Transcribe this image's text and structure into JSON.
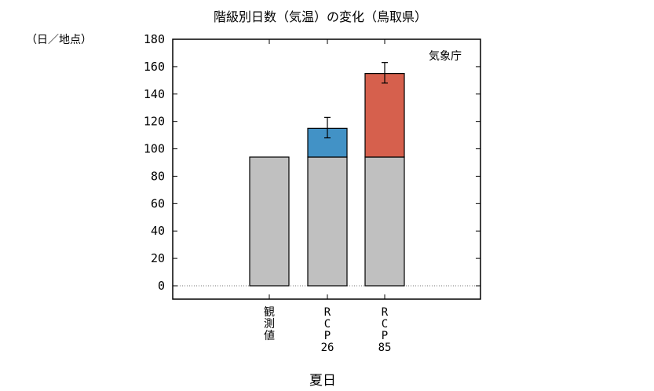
{
  "chart_data": {
    "type": "bar",
    "title": "階級別日数（気温）の変化（鳥取県）",
    "unit_label": "（日／地点）",
    "source_label": "気象庁",
    "xlabel": "夏日",
    "ylim": [
      0,
      180
    ],
    "yticks": [
      "0",
      "20",
      "40",
      "60",
      "80",
      "100",
      "120",
      "140",
      "160",
      "180"
    ],
    "categories": [
      [
        "観",
        "測",
        "値"
      ],
      [
        "R",
        "C",
        "P",
        "26"
      ],
      [
        "R",
        "C",
        "P",
        "85"
      ]
    ],
    "series": [
      {
        "role": "base",
        "values": [
          94,
          94,
          94
        ],
        "color": "#c0c0c0"
      },
      {
        "role": "increase",
        "values": [
          0,
          21,
          61
        ],
        "colors": [
          "#c0c0c0",
          "#4292c6",
          "#d6604d"
        ]
      }
    ],
    "error_bars": [
      null,
      [
        108,
        123
      ],
      [
        148,
        163
      ]
    ],
    "grid": false,
    "zero_line": "dotted"
  }
}
